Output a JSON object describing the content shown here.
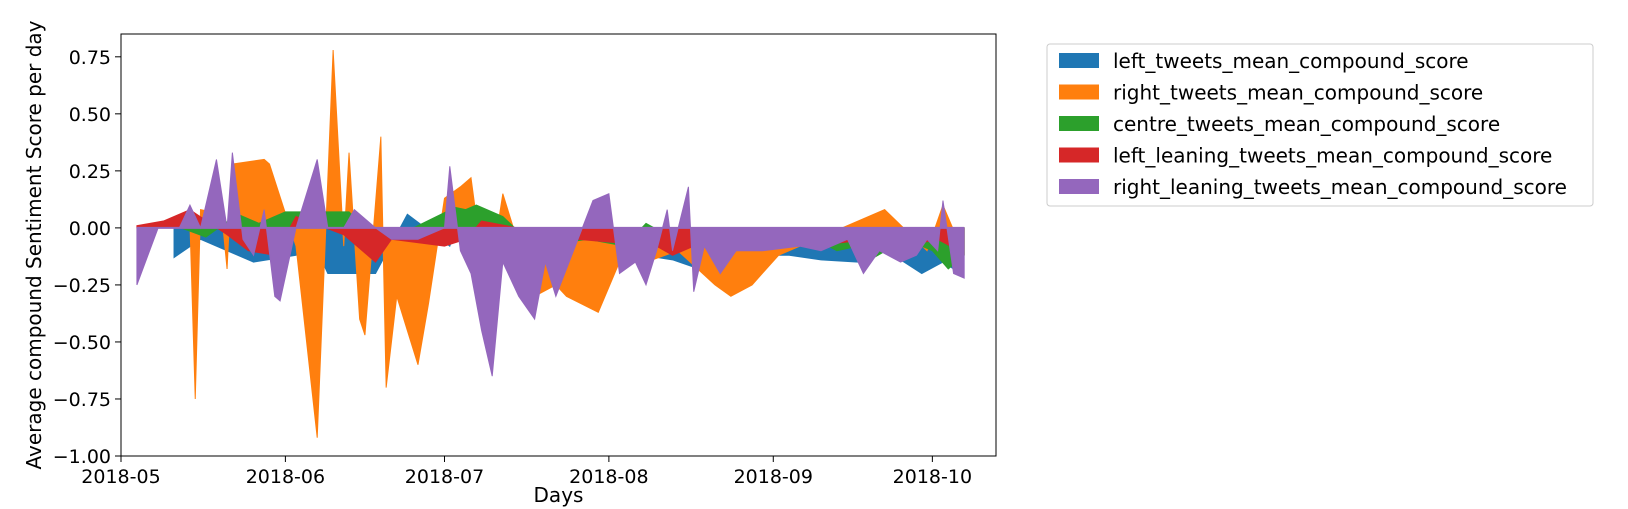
{
  "chart_data": {
    "type": "area",
    "title": "",
    "xlabel": "Days",
    "ylabel": "Average compound Sentiment Score per day",
    "x_tick_labels": [
      "2018-05",
      "2018-06",
      "2018-07",
      "2018-08",
      "2018-09",
      "2018-10"
    ],
    "y_tick_labels": [
      "−1.00",
      "−0.75",
      "−0.50",
      "−0.25",
      "0.00",
      "0.25",
      "0.50",
      "0.75"
    ],
    "ylim": [
      -1.0,
      0.85
    ],
    "xlim": [
      "2018-05-01",
      "2018-10-13"
    ],
    "grid": false,
    "legend_position": "outside-right-top",
    "series": [
      {
        "name": "left_tweets_mean_compound_score",
        "color": "#1f77b4",
        "points": [
          [
            "2018-05-11",
            -0.13
          ],
          [
            "2018-05-16",
            -0.05
          ],
          [
            "2018-05-19",
            -0.08
          ],
          [
            "2018-05-26",
            -0.15
          ],
          [
            "2018-06-03",
            -0.12
          ],
          [
            "2018-06-06",
            -0.05
          ],
          [
            "2018-06-09",
            -0.2
          ],
          [
            "2018-06-18",
            -0.2
          ],
          [
            "2018-06-24",
            0.06
          ],
          [
            "2018-07-02",
            -0.08
          ],
          [
            "2018-07-04",
            0.05
          ],
          [
            "2018-07-25",
            -0.12
          ],
          [
            "2018-08-02",
            -0.1
          ],
          [
            "2018-08-13",
            -0.14
          ],
          [
            "2018-08-18",
            -0.18
          ],
          [
            "2018-08-24",
            -0.1
          ],
          [
            "2018-08-30",
            -0.12
          ],
          [
            "2018-09-04",
            -0.12
          ],
          [
            "2018-09-10",
            -0.14
          ],
          [
            "2018-09-17",
            -0.15
          ],
          [
            "2018-09-22",
            -0.1
          ],
          [
            "2018-09-25",
            -0.14
          ],
          [
            "2018-09-29",
            -0.2
          ],
          [
            "2018-10-03",
            -0.15
          ],
          [
            "2018-10-05",
            -0.18
          ]
        ]
      },
      {
        "name": "right_tweets_mean_compound_score",
        "color": "#ff7f0e",
        "points": [
          [
            "2018-05-14",
            0.02
          ],
          [
            "2018-05-15",
            -0.75
          ],
          [
            "2018-05-16",
            0.08
          ],
          [
            "2018-05-20",
            0.06
          ],
          [
            "2018-05-21",
            -0.18
          ],
          [
            "2018-05-22",
            0.28
          ],
          [
            "2018-05-28",
            0.3
          ],
          [
            "2018-05-29",
            0.28
          ],
          [
            "2018-06-03",
            -0.08
          ],
          [
            "2018-06-07",
            -0.92
          ],
          [
            "2018-06-10",
            0.78
          ],
          [
            "2018-06-12",
            -0.08
          ],
          [
            "2018-06-13",
            0.33
          ],
          [
            "2018-06-15",
            -0.4
          ],
          [
            "2018-06-16",
            -0.47
          ],
          [
            "2018-06-19",
            0.4
          ],
          [
            "2018-06-20",
            -0.7
          ],
          [
            "2018-06-22",
            -0.3
          ],
          [
            "2018-06-24",
            -0.45
          ],
          [
            "2018-06-26",
            -0.6
          ],
          [
            "2018-06-28",
            -0.33
          ],
          [
            "2018-07-01",
            0.13
          ],
          [
            "2018-07-04",
            0.18
          ],
          [
            "2018-07-06",
            0.22
          ],
          [
            "2018-07-09",
            -0.3
          ],
          [
            "2018-07-12",
            0.15
          ],
          [
            "2018-07-18",
            -0.3
          ],
          [
            "2018-07-22",
            -0.25
          ],
          [
            "2018-07-24",
            -0.3
          ],
          [
            "2018-07-30",
            -0.37
          ],
          [
            "2018-08-03",
            -0.15
          ],
          [
            "2018-08-08",
            -0.15
          ],
          [
            "2018-08-14",
            -0.1
          ],
          [
            "2018-08-21",
            -0.25
          ],
          [
            "2018-08-24",
            -0.3
          ],
          [
            "2018-08-28",
            -0.25
          ],
          [
            "2018-09-02",
            -0.12
          ],
          [
            "2018-09-22",
            0.08
          ],
          [
            "2018-09-30",
            -0.1
          ],
          [
            "2018-10-03",
            0.1
          ],
          [
            "2018-10-07",
            -0.12
          ]
        ]
      },
      {
        "name": "centre_tweets_mean_compound_score",
        "color": "#2ca02c",
        "points": [
          [
            "2018-05-10",
            0.02
          ],
          [
            "2018-05-17",
            -0.04
          ],
          [
            "2018-05-23",
            0.06
          ],
          [
            "2018-05-27",
            0.02
          ],
          [
            "2018-06-01",
            0.07
          ],
          [
            "2018-06-13",
            0.07
          ],
          [
            "2018-06-19",
            -0.07
          ],
          [
            "2018-07-03",
            0.09
          ],
          [
            "2018-07-05",
            0.08
          ],
          [
            "2018-07-07",
            0.1
          ],
          [
            "2018-07-12",
            0.05
          ],
          [
            "2018-07-16",
            -0.04
          ],
          [
            "2018-07-22",
            -0.07
          ],
          [
            "2018-07-28",
            -0.05
          ],
          [
            "2018-08-04",
            -0.08
          ],
          [
            "2018-08-08",
            0.02
          ],
          [
            "2018-08-15",
            -0.07
          ],
          [
            "2018-08-26",
            -0.05
          ],
          [
            "2018-09-03",
            -0.08
          ],
          [
            "2018-09-09",
            -0.05
          ],
          [
            "2018-09-13",
            -0.1
          ],
          [
            "2018-09-17",
            -0.08
          ],
          [
            "2018-09-20",
            -0.13
          ],
          [
            "2018-09-26",
            -0.05
          ],
          [
            "2018-10-01",
            -0.1
          ],
          [
            "2018-10-04",
            -0.18
          ],
          [
            "2018-10-07",
            -0.12
          ]
        ]
      },
      {
        "name": "left_leaning_tweets_mean_compound_score",
        "color": "#d62728",
        "points": [
          [
            "2018-05-04",
            0.01
          ],
          [
            "2018-05-09",
            0.03
          ],
          [
            "2018-05-14",
            0.08
          ],
          [
            "2018-05-21",
            -0.03
          ],
          [
            "2018-05-25",
            -0.1
          ],
          [
            "2018-05-30",
            -0.12
          ],
          [
            "2018-06-03",
            0.05
          ],
          [
            "2018-06-12",
            -0.03
          ],
          [
            "2018-06-18",
            -0.15
          ],
          [
            "2018-06-21",
            -0.05
          ],
          [
            "2018-07-01",
            -0.08
          ],
          [
            "2018-07-05",
            -0.05
          ],
          [
            "2018-07-08",
            0.03
          ],
          [
            "2018-07-26",
            -0.05
          ],
          [
            "2018-08-10",
            -0.08
          ],
          [
            "2018-08-13",
            -0.12
          ],
          [
            "2018-08-22",
            -0.03
          ],
          [
            "2018-08-25",
            -0.05
          ],
          [
            "2018-08-29",
            -0.08
          ],
          [
            "2018-09-05",
            -0.05
          ],
          [
            "2018-09-12",
            -0.07
          ],
          [
            "2018-09-19",
            -0.05
          ],
          [
            "2018-09-28",
            -0.07
          ],
          [
            "2018-10-02",
            -0.05
          ],
          [
            "2018-10-06",
            -0.1
          ]
        ]
      },
      {
        "name": "right_leaning_tweets_mean_compound_score",
        "color": "#9467bd",
        "points": [
          [
            "2018-05-04",
            -0.25
          ],
          [
            "2018-05-08",
            0.0
          ],
          [
            "2018-05-12",
            0.0
          ],
          [
            "2018-05-14",
            0.1
          ],
          [
            "2018-05-16",
            0.0
          ],
          [
            "2018-05-19",
            0.3
          ],
          [
            "2018-05-21",
            0.0
          ],
          [
            "2018-05-22",
            0.33
          ],
          [
            "2018-05-24",
            -0.05
          ],
          [
            "2018-05-26",
            -0.12
          ],
          [
            "2018-05-28",
            0.08
          ],
          [
            "2018-05-30",
            -0.3
          ],
          [
            "2018-05-31",
            -0.32
          ],
          [
            "2018-06-03",
            0.0
          ],
          [
            "2018-06-07",
            0.3
          ],
          [
            "2018-06-09",
            0.0
          ],
          [
            "2018-06-12",
            0.0
          ],
          [
            "2018-06-14",
            0.08
          ],
          [
            "2018-06-18",
            0.0
          ],
          [
            "2018-06-21",
            -0.05
          ],
          [
            "2018-06-26",
            -0.05
          ],
          [
            "2018-07-01",
            0.0
          ],
          [
            "2018-07-02",
            0.27
          ],
          [
            "2018-07-04",
            -0.1
          ],
          [
            "2018-07-06",
            -0.2
          ],
          [
            "2018-07-08",
            -0.45
          ],
          [
            "2018-07-10",
            -0.65
          ],
          [
            "2018-07-12",
            -0.15
          ],
          [
            "2018-07-15",
            -0.3
          ],
          [
            "2018-07-18",
            -0.4
          ],
          [
            "2018-07-20",
            -0.15
          ],
          [
            "2018-07-22",
            -0.3
          ],
          [
            "2018-07-24",
            -0.18
          ],
          [
            "2018-07-27",
            0.0
          ],
          [
            "2018-07-29",
            0.12
          ],
          [
            "2018-08-01",
            0.15
          ],
          [
            "2018-08-03",
            -0.2
          ],
          [
            "2018-08-06",
            -0.15
          ],
          [
            "2018-08-08",
            -0.25
          ],
          [
            "2018-08-10",
            -0.1
          ],
          [
            "2018-08-12",
            0.08
          ],
          [
            "2018-08-13",
            -0.1
          ],
          [
            "2018-08-16",
            0.18
          ],
          [
            "2018-08-17",
            -0.28
          ],
          [
            "2018-08-19",
            -0.08
          ],
          [
            "2018-08-22",
            -0.2
          ],
          [
            "2018-08-25",
            -0.1
          ],
          [
            "2018-08-30",
            -0.1
          ],
          [
            "2018-09-06",
            -0.08
          ],
          [
            "2018-09-10",
            -0.1
          ],
          [
            "2018-09-15",
            -0.05
          ],
          [
            "2018-09-18",
            -0.2
          ],
          [
            "2018-09-21",
            -0.1
          ],
          [
            "2018-09-25",
            -0.15
          ],
          [
            "2018-09-28",
            -0.12
          ],
          [
            "2018-09-30",
            -0.05
          ],
          [
            "2018-10-02",
            -0.1
          ],
          [
            "2018-10-03",
            0.12
          ],
          [
            "2018-10-05",
            -0.2
          ],
          [
            "2018-10-07",
            -0.22
          ]
        ]
      }
    ]
  }
}
